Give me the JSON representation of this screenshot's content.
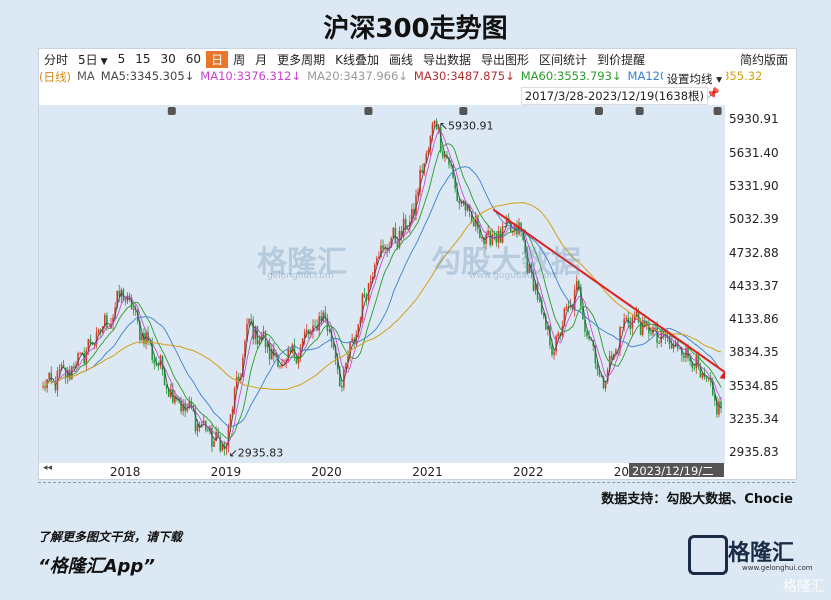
{
  "title": "沪深300走势图",
  "toolbar": {
    "items": [
      "分时",
      "5日",
      "5",
      "15",
      "30",
      "60",
      "日",
      "周",
      "月",
      "更多周期",
      "K线叠加",
      "画线",
      "导出数据",
      "导出图形",
      "区间统计",
      "到价提醒"
    ],
    "active": "日",
    "right": "简约版面"
  },
  "ma_bar": [
    {
      "text": "(日线)",
      "color": "#d98a1b"
    },
    {
      "text": "MA",
      "color": "#555555"
    },
    {
      "text": "MA5:3345.305↓",
      "color": "#444444"
    },
    {
      "text": "MA10:3376.312↓",
      "color": "#c83fd0"
    },
    {
      "text": "MA20:3437.966↓",
      "color": "#999999"
    },
    {
      "text": "MA30:3487.875↓",
      "color": "#b03030"
    },
    {
      "text": "MA60:3553.793↓",
      "color": "#2a9a2a"
    },
    {
      "text": "MA120:3(",
      "color": "#3a7fd0"
    },
    {
      "text": "250:3855.32",
      "color": "#d4a017"
    }
  ],
  "settings_label": "设置均线",
  "period_label": "2017/3/28-2023/12/19(1638根)",
  "high_label": "5930.91",
  "low_label": "2935.83",
  "cursor_date": "2023/12/19/二",
  "source": "数据支持：勾股大数据、Chocie",
  "watermark": {
    "brand": "格隆汇",
    "brand_url": "gelonghui.com",
    "site": "勾股大数据",
    "site_url": "www.gogudata.com"
  },
  "promo": {
    "line1": "了解更多图文干货，请下载",
    "line2": "“格隆汇App”"
  },
  "logo": {
    "name": "格隆汇",
    "url": "www.gelonghui.com"
  },
  "corner_watermark": "格隆汇",
  "colors": {
    "candle_up": "#d23b2a",
    "candle_down": "#1f9a3a",
    "ma5": "#444444",
    "ma10": "#c83fd0",
    "ma20": "#2a9a2a",
    "ma60": "#3a7fd0",
    "ma250": "#d4a017",
    "trend_arrow": "#e02020"
  },
  "chart_data": {
    "type": "line",
    "title": "沪深300走势图",
    "x_ticks": [
      "2018",
      "2019",
      "2020",
      "2021",
      "2022",
      "2023"
    ],
    "y_ticks": [
      5930.91,
      5631.4,
      5331.9,
      5032.39,
      4732.88,
      4433.37,
      4133.86,
      3834.35,
      3534.85,
      3235.34,
      2935.83
    ],
    "ylim": [
      2840,
      6060
    ],
    "date_range": [
      "2017-03-28",
      "2023-12-19"
    ],
    "series": [
      {
        "name": "沪深300",
        "x": [
          "2017-03",
          "2017-07",
          "2017-11",
          "2018-01",
          "2018-03",
          "2018-07",
          "2018-10",
          "2019-01",
          "2019-04",
          "2019-08",
          "2020-01",
          "2020-03",
          "2020-07",
          "2020-11",
          "2021-02",
          "2021-05",
          "2021-08",
          "2021-12",
          "2022-04",
          "2022-07",
          "2022-10",
          "2023-01",
          "2023-05",
          "2023-08",
          "2023-12"
        ],
        "values": [
          3480,
          3700,
          4100,
          4380,
          4050,
          3450,
          3200,
          2960,
          4100,
          3700,
          4180,
          3550,
          4700,
          4980,
          5930,
          5200,
          4850,
          4950,
          3850,
          4400,
          3550,
          4170,
          3950,
          3850,
          3330
        ]
      }
    ],
    "moving_averages": [
      {
        "name": "MA5",
        "value": 3345.305
      },
      {
        "name": "MA10",
        "value": 3376.312
      },
      {
        "name": "MA20",
        "value": 3437.966
      },
      {
        "name": "MA30",
        "value": 3487.875
      },
      {
        "name": "MA60",
        "value": 3553.793
      },
      {
        "name": "MA250",
        "value": 3855.32
      }
    ],
    "annotations": [
      {
        "label": "5930.91",
        "x": "2021-02",
        "y": 5930.91
      },
      {
        "label": "2935.83",
        "x": "2019-01",
        "y": 2935.83
      }
    ],
    "trend_arrow": {
      "from": [
        "2021-09",
        5120
      ],
      "to": [
        "2023-12",
        3600
      ]
    },
    "grid": false
  }
}
